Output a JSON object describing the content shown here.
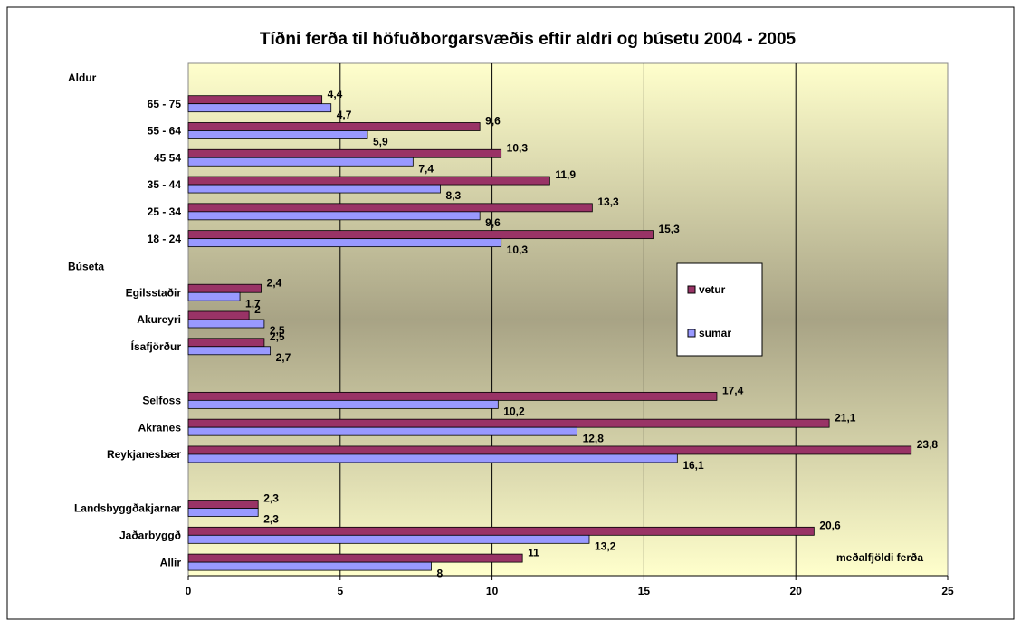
{
  "chart_data": {
    "type": "bar",
    "orientation": "horizontal",
    "title": "Tíðni ferða til höfuðborgarsvæðis eftir aldri og búsetu 2004 - 2005",
    "x_label": "meðalfjöldi ferða",
    "categories": [
      "Aldur",
      "65 - 75",
      "55 - 64",
      "45 54",
      "35 - 44",
      "25 - 34",
      "18 - 24",
      "Búseta",
      "Egilsstaðir",
      "Akureyri",
      "Ísafjörður",
      null,
      "Selfoss",
      "Akranes",
      "Reykjanesbær",
      null,
      "Landsbyggðakjarnar",
      "Jaðarbyggð",
      "Allir"
    ],
    "series": [
      {
        "name": "vetur",
        "color": "#993366",
        "values": [
          null,
          4.4,
          9.6,
          10.3,
          11.9,
          13.3,
          15.3,
          null,
          2.4,
          2,
          2.5,
          null,
          17.4,
          21.1,
          23.8,
          null,
          2.3,
          20.6,
          11
        ],
        "value_labels": [
          null,
          "4,4",
          "9,6",
          "10,3",
          "11,9",
          "13,3",
          "15,3",
          null,
          "2,4",
          "2",
          "2,5",
          null,
          "17,4",
          "21,1",
          "23,8",
          null,
          "2,3",
          "20,6",
          "11"
        ]
      },
      {
        "name": "sumar",
        "color": "#9999ff",
        "values": [
          null,
          4.7,
          5.9,
          7.4,
          8.3,
          9.6,
          10.3,
          null,
          1.7,
          2.5,
          2.7,
          null,
          10.2,
          12.8,
          16.1,
          null,
          2.3,
          13.2,
          8
        ],
        "value_labels": [
          null,
          "4,7",
          "5,9",
          "7,4",
          "8,3",
          "9,6",
          "10,3",
          null,
          "1,7",
          "2,5",
          "2,7",
          null,
          "10,2",
          "12,8",
          "16,1",
          null,
          "2,3",
          "13,2",
          "8"
        ]
      }
    ],
    "xlim": [
      0,
      25
    ],
    "xticks": [
      0,
      5,
      10,
      15,
      20,
      25
    ],
    "grid": true
  }
}
